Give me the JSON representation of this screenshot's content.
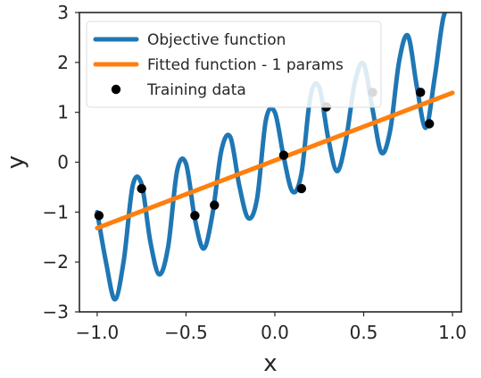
{
  "chart_data": {
    "type": "line",
    "xlabel": "x",
    "ylabel": "y",
    "xlim": [
      -1.1,
      1.05
    ],
    "ylim": [
      -3.0,
      3.0
    ],
    "xticks": [
      -1.0,
      -0.5,
      0.0,
      0.5,
      1.0
    ],
    "xtick_labels": [
      "−1.0",
      "−0.5",
      "0.0",
      "0.5",
      "1.0"
    ],
    "yticks": [
      -3,
      -2,
      -1,
      0,
      1,
      2,
      3
    ],
    "ytick_labels": [
      "−3",
      "−2",
      "−1",
      "0",
      "1",
      "2",
      "3"
    ],
    "grid": false,
    "legend_position": "top-left",
    "series": [
      {
        "name": "Objective function",
        "color": "#1f77b4",
        "kind": "line",
        "x": [
          -1.0,
          -0.95,
          -0.9,
          -0.85,
          -0.8,
          -0.75,
          -0.7,
          -0.65,
          -0.6,
          -0.55,
          -0.5,
          -0.45,
          -0.4,
          -0.35,
          -0.3,
          -0.25,
          -0.2,
          -0.15,
          -0.1,
          -0.05,
          0.0,
          0.05,
          0.1,
          0.15,
          0.2,
          0.25,
          0.3,
          0.35,
          0.4,
          0.45,
          0.5,
          0.55,
          0.6,
          0.65,
          0.7,
          0.75,
          0.8,
          0.85,
          0.9,
          0.95,
          1.0
        ],
        "y": [
          -1.0,
          -2.01,
          -2.75,
          -1.96,
          -0.47,
          -0.44,
          -1.61,
          -2.25,
          -1.68,
          -0.17,
          -0.03,
          -1.14,
          -1.73,
          -1.02,
          0.25,
          0.5,
          -0.47,
          -1.12,
          -0.73,
          0.85,
          1.0,
          0.1,
          -0.59,
          -0.22,
          1.31,
          1.5,
          0.49,
          -0.18,
          0.44,
          1.59,
          1.97,
          1.06,
          0.19,
          0.65,
          2.03,
          2.53,
          1.5,
          0.69,
          1.7,
          2.92,
          3.1
        ]
      },
      {
        "name": "Fitted function - 1 params",
        "color": "#ff7f0e",
        "kind": "line",
        "x": [
          -1.0,
          1.0
        ],
        "y": [
          -1.32,
          1.39
        ]
      },
      {
        "name": "Training data",
        "color": "#000000",
        "kind": "scatter",
        "x": [
          -0.99,
          -0.75,
          -0.45,
          -0.34,
          0.05,
          0.15,
          0.29,
          0.55,
          0.82,
          0.87
        ],
        "y": [
          -1.07,
          -0.53,
          -1.07,
          -0.86,
          0.14,
          -0.53,
          1.11,
          1.4,
          1.4,
          0.77
        ]
      }
    ]
  }
}
